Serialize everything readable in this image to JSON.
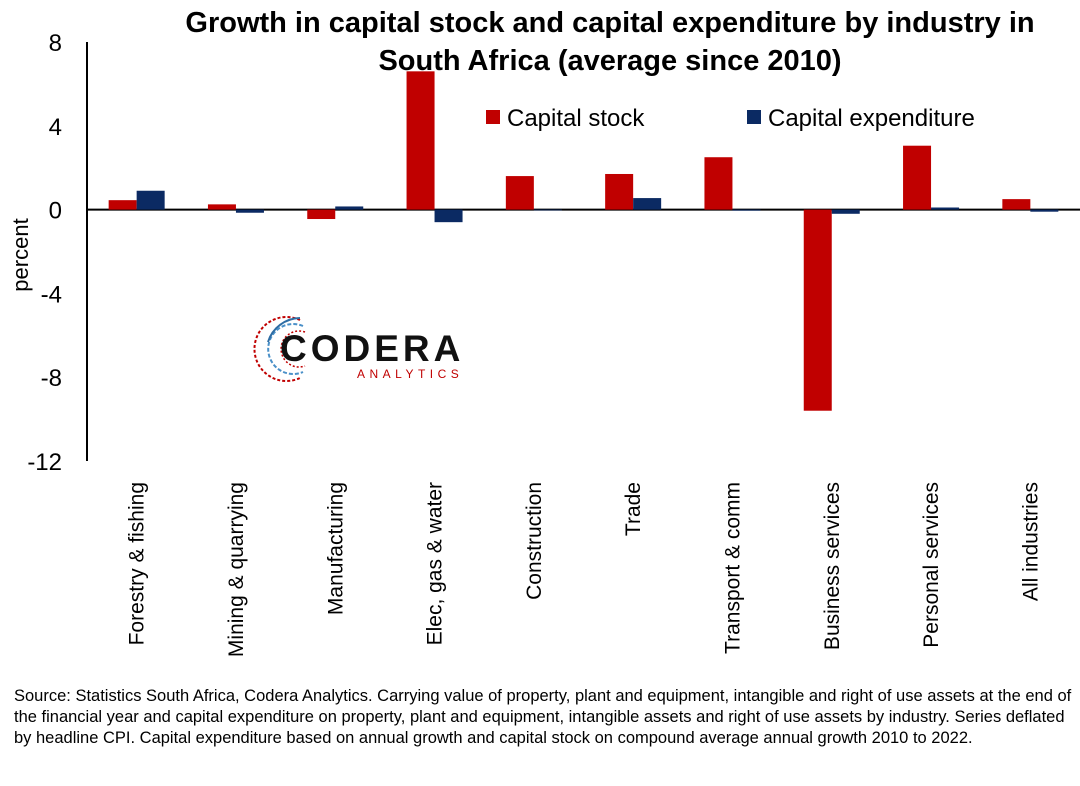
{
  "chart_data": {
    "type": "bar",
    "title": "Growth in capital stock and capital expenditure by industry in South Africa (average since 2010)",
    "ylabel": "percent",
    "xlabel": "",
    "ylim": [
      -12,
      8
    ],
    "yticks": [
      8,
      4,
      0,
      -4,
      -8,
      -12
    ],
    "ytick_labels": [
      "8",
      "4",
      "0",
      "-4",
      "-8",
      "-12"
    ],
    "grid": false,
    "legend_position": "top-right",
    "categories": [
      "Forestry & fishing",
      "Mining & quarrying",
      "Manufacturing",
      "Elec, gas & water",
      "Construction",
      "Trade",
      "Transport & comm",
      "Business services",
      "Personal services",
      "All industries"
    ],
    "series": [
      {
        "name": "Capital stock",
        "color": "#C00000",
        "values": [
          0.45,
          0.25,
          -0.45,
          6.6,
          1.6,
          1.7,
          2.5,
          -9.6,
          3.05,
          0.5
        ]
      },
      {
        "name": "Capital expenditure",
        "color": "#0B2A63",
        "values": [
          0.9,
          -0.15,
          0.15,
          -0.6,
          0.0,
          0.55,
          -0.05,
          -0.2,
          0.1,
          -0.1
        ]
      }
    ]
  },
  "logo": {
    "name": "CODERA",
    "subtitle": "ANALYTICS"
  },
  "source_note": "Source: Statistics South Africa, Codera Analytics. Carrying value of property, plant and equipment, intangible and right of use assets at the end of the financial year and capital expenditure on property, plant and equipment, intangible assets and right of use assets by industry. Series deflated by headline CPI. Capital expenditure based on annual growth and capital stock on compound average annual growth 2010 to 2022."
}
